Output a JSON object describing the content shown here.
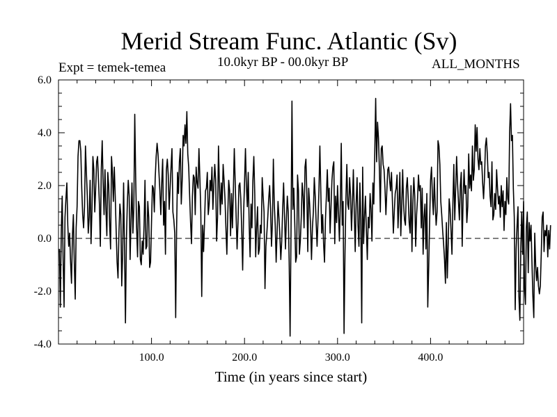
{
  "chart_data": {
    "type": "line",
    "title": "Merid Stream Func. Atlantic (Sv)",
    "experiment": "Expt = temek-temea",
    "subtitle": "10.0kyr BP - 00.0kyr BP",
    "season": "ALL_MONTHS",
    "xlabel": "Time (in years since start)",
    "ylabel": "",
    "xlim": [
      0,
      500
    ],
    "ylim": [
      -4.0,
      6.0
    ],
    "x_ticks": [
      100,
      200,
      300,
      400
    ],
    "x_tick_labels": [
      "100.0",
      "200.0",
      "300.0",
      "400.0"
    ],
    "y_ticks": [
      -4,
      -2,
      0,
      2,
      4,
      6
    ],
    "y_tick_labels": [
      "-4.0",
      "-2.0",
      "0.0",
      "2.0",
      "4.0",
      "6.0"
    ],
    "zero_line": "dashed",
    "series": [
      {
        "name": "Merid Stream Func. Atlantic",
        "x_start": 1,
        "x_step": 1,
        "values": [
          -0.4,
          -2.6,
          0.3,
          1.6,
          -0.8,
          -2.6,
          0.8,
          1.5,
          2.1,
          0.5,
          -0.3,
          0.2,
          -0.9,
          -1.7,
          0.1,
          0.9,
          -0.9,
          -2.3,
          0.4,
          1.2,
          3.1,
          3.7,
          3.7,
          3.3,
          1.9,
          0.9,
          0.4,
          1.2,
          3.5,
          2.5,
          1.6,
          0.2,
          0.8,
          2.2,
          -0.2,
          1.1,
          3.1,
          2.6,
          1.0,
          1.9,
          2.9,
          3.1,
          2.2,
          1.3,
          -0.3,
          2.6,
          3.7,
          2.1,
          0.9,
          2.6,
          1.1,
          0.1,
          2.5,
          2.0,
          0.5,
          -0.4,
          3.1,
          2.5,
          1.4,
          2.7,
          1.6,
          0.3,
          -0.9,
          -1.5,
          0.2,
          1.3,
          0.9,
          -1.8,
          -0.6,
          2.1,
          -0.4,
          -3.2,
          -0.1,
          1.3,
          2.2,
          1.6,
          -0.8,
          0.7,
          2.1,
          0.2,
          1.2,
          4.7,
          2.3,
          0.4,
          -0.7,
          1.4,
          1.2,
          -0.8,
          -1.0,
          -0.1,
          -0.6,
          0.5,
          2.2,
          -0.4,
          -0.3,
          1.4,
          0.8,
          -1.1,
          -0.9,
          0.6,
          2.0,
          1.9,
          1.0,
          2.3,
          3.1,
          3.6,
          3.2,
          2.5,
          1.8,
          0.9,
          2.1,
          3.0,
          0.5,
          1.4,
          -0.6,
          2.6,
          3.0,
          2.4,
          1.1,
          1.9,
          2.7,
          3.4,
          1.0,
          0.7,
          0.2,
          -3.0,
          0.4,
          2.5,
          1.7,
          2.9,
          3.4,
          1.3,
          2.2,
          3.9,
          3.5,
          4.3,
          3.6,
          4.8,
          3.2,
          2.7,
          1.6,
          0.6,
          -0.2,
          1.6,
          2.4,
          2.3,
          0.9,
          2.7,
          2.1,
          1.9,
          3.4,
          2.3,
          1.0,
          -2.2,
          0.5,
          -0.5,
          0.6,
          1.8,
          1.9,
          2.5,
          0.9,
          1.3,
          2.2,
          1.8,
          2.7,
          1.1,
          2.0,
          2.8,
          2.2,
          -0.1,
          0.8,
          3.5,
          2.0,
          0.9,
          2.1,
          1.3,
          2.8,
          2.2,
          1.5,
          0.4,
          -0.6,
          0.9,
          2.2,
          1.8,
          0.1,
          1.7,
          0.4,
          1.8,
          3.4,
          2.1,
          0.8,
          -0.4,
          0.6,
          2.0,
          2.1,
          1.5,
          0.3,
          -1.2,
          0.9,
          2.1,
          3.4,
          2.0,
          1.2,
          2.5,
          0.5,
          -0.7,
          1.3,
          0.4,
          2.2,
          3.1,
          1.7,
          -0.7,
          0.4,
          1.2,
          -0.6,
          -0.4,
          0.5,
          0.2,
          2.3,
          1.6,
          1.0,
          -1.9,
          -0.3,
          0.2,
          0.8,
          1.5,
          2.0,
          1.1,
          -0.3,
          0.6,
          3.0,
          1.3,
          0.5,
          -0.9,
          0.2,
          1.4,
          0.8,
          0.1,
          -0.8,
          -0.1,
          1.1,
          2.1,
          0.9,
          -0.4,
          0.7,
          1.6,
          1.0,
          -0.9,
          -3.7,
          0.3,
          5.2,
          1.1,
          1.9,
          0.6,
          -0.9,
          -0.7,
          2.4,
          1.8,
          -0.6,
          -0.1,
          0.8,
          2.1,
          1.6,
          0.4,
          2.7,
          3.0,
          1.7,
          -0.5,
          1.9,
          1.3,
          0.5,
          -0.8,
          0.4,
          1.0,
          2.3,
          1.6,
          0.6,
          -0.3,
          0.7,
          1.8,
          3.5,
          1.8,
          0.2,
          0.9,
          -0.2,
          -0.9,
          0.7,
          1.6,
          2.6,
          1.4,
          1.9,
          0.2,
          1.2,
          2.2,
          2.7,
          2.9,
          -0.2,
          1.6,
          0.6,
          2.0,
          1.0,
          -0.1,
          1.3,
          3.6,
          0.5,
          1.4,
          -3.6,
          -0.6,
          1.5,
          2.8,
          1.3,
          1.1,
          2.3,
          1.6,
          0.3,
          1.3,
          2.6,
          1.0,
          -0.5,
          1.3,
          2.3,
          0.5,
          -0.3,
          2.1,
          0.7,
          -3.2,
          2.7,
          -0.2,
          0.8,
          1.6,
          0.3,
          -0.8,
          0.8,
          0.4,
          1.7,
          1.1,
          -0.1,
          2.1,
          1.3,
          3.2,
          5.3,
          2.9,
          4.4,
          3.8,
          2.6,
          1.0,
          3.4,
          3.5,
          2.8,
          2.6,
          1.9,
          0.9,
          1.8,
          2.6,
          2.7,
          2.2,
          1.8,
          2.5,
          1.4,
          0.2,
          1.0,
          1.7,
          1.9,
          2.4,
          0.4,
          1.3,
          2.5,
          0.1,
          1.2,
          2.6,
          1.3,
          0.7,
          0.5,
          1.9,
          2.3,
          1.5,
          0.6,
          0.2,
          2.0,
          -0.5,
          1.3,
          2.3,
          1.6,
          -0.3,
          0.9,
          1.5,
          2.4,
          1.8,
          2.0,
          0.4,
          1.9,
          -0.6,
          0.8,
          1.3,
          -0.4,
          1.7,
          -2.6,
          -1.1,
          0.6,
          2.2,
          2.7,
          1.6,
          0.9,
          2.3,
          1.3,
          0.5,
          1.0,
          3.7,
          3.5,
          2.8,
          1.4,
          0.9,
          0.3,
          -0.2,
          -0.8,
          -1.7,
          0.6,
          -1.5,
          -0.2,
          1.5,
          1.1,
          0.3,
          -0.6,
          1.3,
          2.8,
          0.7,
          1.9,
          3.1,
          2.1,
          1.4,
          0.7,
          2.0,
          2.5,
          -0.3,
          1.5,
          2.6,
          1.7,
          2.0,
          0.6,
          1.2,
          3.2,
          1.9,
          2.4,
          1.8,
          3.5,
          2.2,
          2.6,
          4.3,
          3.3,
          4.2,
          3.0,
          2.6,
          3.4,
          2.8,
          2.9,
          2.1,
          1.5,
          2.3,
          3.5,
          3.8,
          3.2,
          2.3,
          2.5,
          1.6,
          1.2,
          2.9,
          0.7,
          0.9,
          1.7,
          1.1,
          2.6,
          1.9,
          1.3,
          1.6,
          0.8,
          2.0,
          1.2,
          1.8,
          0.3,
          1.4,
          0.9,
          2.3,
          1.5,
          1.3,
          4.0,
          5.1,
          3.7,
          3.9,
          1.9,
          0.8,
          -2.7,
          -0.4,
          0.5,
          1.2,
          -2.2,
          -3.1,
          -0.4,
          1.0,
          -0.6,
          1.4,
          -1.9,
          -2.5,
          0.4,
          1.0,
          -1.3,
          0.6,
          -0.1,
          0.5,
          -0.9,
          -2.2,
          -3.0,
          0.2,
          -1.0,
          -1.6,
          -1.1,
          -1.8,
          -2.1,
          -1.8,
          -0.6,
          0.8,
          1.0,
          -0.5,
          0.3,
          0.1,
          0.5,
          -0.7,
          0.3,
          -0.4,
          0.5
        ]
      }
    ]
  }
}
